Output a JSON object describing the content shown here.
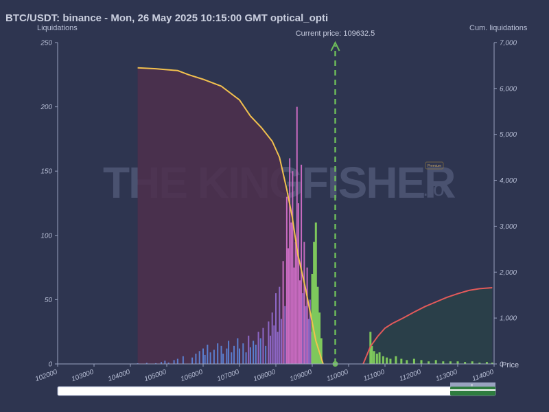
{
  "title": "BTC/USDT: binance - Mon, 26 May 2025 10:15:00 GMT optical_opti",
  "watermark": {
    "main": "THE KINGFISHER",
    "suffix": ".io",
    "badge": "Premium"
  },
  "navigator": {
    "handle_label": "|||"
  },
  "chart_data": {
    "type": "bar",
    "ylabel": "Liquidations",
    "y2label": "Cum. liquidations",
    "xlabel": "Price",
    "xlim": [
      102000,
      114000
    ],
    "ylim": [
      0,
      250
    ],
    "y2lim": [
      0,
      7000
    ],
    "x_ticks": [
      "102000",
      "103000",
      "104000",
      "105000",
      "106000",
      "107000",
      "108000",
      "109000",
      "110000",
      "111000",
      "112000",
      "113000",
      "114000"
    ],
    "y_ticks": [
      "0",
      "50",
      "100",
      "150",
      "200",
      "250"
    ],
    "y2_ticks": [
      "0",
      "1,000",
      "2,000",
      "3,000",
      "4,000",
      "5,000",
      "6,000",
      "7,000"
    ],
    "current_price": 109632.5,
    "current_price_label": "Current price: 109632.5",
    "colors": {
      "long_area": "#4e2f4c",
      "short_area": "#2a4048",
      "cum_long": "#f2c14e",
      "cum_short": "#e35a5a",
      "current_price": "#6dbb5a",
      "bar_low": "#5a7fd0",
      "bar_mid": "#8e67c6",
      "bar_high": "#c86bc0",
      "bar_green": "#7ec85c"
    },
    "long_bars": [
      [
        104200,
        0.5
      ],
      [
        104450,
        0.8
      ],
      [
        104700,
        0.6
      ],
      [
        104850,
        1.5
      ],
      [
        104950,
        2.5
      ],
      [
        105050,
        1
      ],
      [
        105200,
        3
      ],
      [
        105300,
        4
      ],
      [
        105450,
        6
      ],
      [
        105700,
        5
      ],
      [
        105800,
        8
      ],
      [
        105900,
        10
      ],
      [
        106000,
        12
      ],
      [
        106050,
        7
      ],
      [
        106120,
        15
      ],
      [
        106200,
        9
      ],
      [
        106300,
        11
      ],
      [
        106400,
        16
      ],
      [
        106500,
        14
      ],
      [
        106550,
        8
      ],
      [
        106650,
        12
      ],
      [
        106700,
        18
      ],
      [
        106780,
        9
      ],
      [
        106850,
        14
      ],
      [
        106950,
        20
      ],
      [
        107000,
        12
      ],
      [
        107100,
        16
      ],
      [
        107180,
        9
      ],
      [
        107250,
        22
      ],
      [
        107300,
        13
      ],
      [
        107380,
        18
      ],
      [
        107450,
        15
      ],
      [
        107520,
        25
      ],
      [
        107580,
        20
      ],
      [
        107650,
        28
      ],
      [
        107720,
        14
      ],
      [
        107800,
        33
      ],
      [
        107850,
        22
      ],
      [
        107900,
        40
      ],
      [
        107950,
        30
      ],
      [
        108000,
        55
      ],
      [
        108050,
        25
      ],
      [
        108100,
        60
      ],
      [
        108150,
        35
      ],
      [
        108200,
        80
      ],
      [
        108250,
        45
      ],
      [
        108300,
        130
      ],
      [
        108340,
        90
      ],
      [
        108380,
        160
      ],
      [
        108420,
        110
      ],
      [
        108460,
        150
      ],
      [
        108500,
        75
      ],
      [
        108540,
        95
      ],
      [
        108580,
        200
      ],
      [
        108620,
        125
      ],
      [
        108660,
        65
      ],
      [
        108700,
        155
      ],
      [
        108740,
        55
      ],
      [
        108780,
        95
      ],
      [
        108820,
        45
      ],
      [
        108860,
        75
      ],
      [
        108900,
        35
      ],
      [
        108940,
        50
      ],
      [
        108980,
        25
      ]
    ],
    "short_bars": [
      [
        110600,
        25
      ],
      [
        110640,
        14
      ],
      [
        110700,
        10
      ],
      [
        110780,
        8
      ],
      [
        110850,
        9
      ],
      [
        110950,
        6
      ],
      [
        111050,
        5
      ],
      [
        111150,
        4
      ],
      [
        111300,
        6
      ],
      [
        111450,
        4
      ],
      [
        111600,
        3
      ],
      [
        111800,
        4
      ],
      [
        112000,
        3
      ],
      [
        112200,
        2
      ],
      [
        112400,
        3
      ],
      [
        112600,
        2
      ],
      [
        112800,
        2
      ],
      [
        113000,
        2
      ],
      [
        113200,
        1.5
      ],
      [
        113400,
        2
      ],
      [
        113600,
        1
      ],
      [
        113800,
        1.5
      ],
      [
        113950,
        1
      ]
    ],
    "green_near_price": [
      [
        109000,
        70
      ],
      [
        109050,
        95
      ],
      [
        109100,
        110
      ],
      [
        109150,
        60
      ],
      [
        109200,
        40
      ],
      [
        109250,
        20
      ]
    ],
    "cum_long_line": [
      [
        104200,
        6450
      ],
      [
        104700,
        6430
      ],
      [
        105300,
        6390
      ],
      [
        105600,
        6300
      ],
      [
        106000,
        6200
      ],
      [
        106500,
        6050
      ],
      [
        107000,
        5750
      ],
      [
        107300,
        5400
      ],
      [
        107600,
        5150
      ],
      [
        107900,
        4850
      ],
      [
        108100,
        4500
      ],
      [
        108300,
        3800
      ],
      [
        108450,
        3200
      ],
      [
        108600,
        2400
      ],
      [
        108800,
        1700
      ],
      [
        108950,
        1100
      ],
      [
        109100,
        500
      ],
      [
        109250,
        120
      ],
      [
        109300,
        0
      ]
    ],
    "cum_short_line": [
      [
        110400,
        0
      ],
      [
        110600,
        380
      ],
      [
        110800,
        600
      ],
      [
        111000,
        780
      ],
      [
        111200,
        880
      ],
      [
        111500,
        1000
      ],
      [
        111800,
        1130
      ],
      [
        112100,
        1250
      ],
      [
        112400,
        1350
      ],
      [
        112700,
        1450
      ],
      [
        113000,
        1530
      ],
      [
        113300,
        1600
      ],
      [
        113600,
        1640
      ],
      [
        113950,
        1660
      ]
    ]
  }
}
